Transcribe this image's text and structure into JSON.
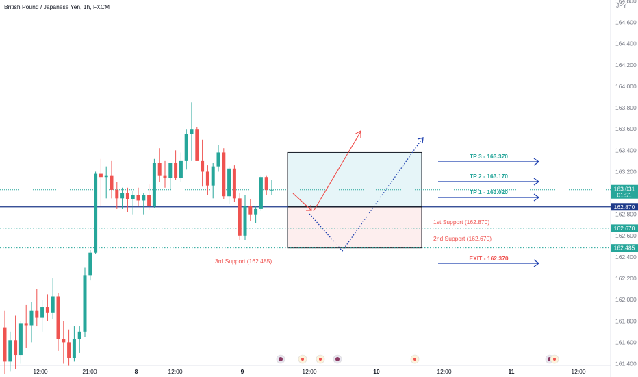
{
  "header": {
    "title": "British Pound / Japanese Yen, 1h, FXCM"
  },
  "chart_data": {
    "type": "candlestick",
    "title": "British Pound / Japanese Yen, 1h, FXCM",
    "currency": "JPY",
    "y_ticks": [
      161.4,
      161.6,
      161.8,
      162.0,
      162.2,
      162.4,
      162.6,
      162.8,
      163.0,
      163.2,
      163.4,
      163.6,
      163.8,
      164.0,
      164.2,
      164.4,
      164.6,
      164.8
    ],
    "y_tick_labels": [
      "161.400",
      "161.600",
      "161.800",
      "162.000",
      "162.200",
      "162.400",
      "162.600",
      "162.800",
      "163.000",
      "163.200",
      "163.400",
      "163.600",
      "163.800",
      "164.000",
      "164.200",
      "164.400",
      "164.600",
      "164.800"
    ],
    "ylim": [
      161.33,
      164.95
    ],
    "x_tick_labels": [
      "12:00",
      "21:00",
      "8",
      "12:00",
      "9",
      "12:00",
      "10",
      "12:00",
      "11",
      "12:00"
    ],
    "up_color": "#26a69a",
    "down_color": "#ef5350",
    "candles": [
      {
        "o": 161.74,
        "h": 161.9,
        "l": 161.3,
        "c": 161.42
      },
      {
        "o": 161.42,
        "h": 161.7,
        "l": 161.33,
        "c": 161.62
      },
      {
        "o": 161.62,
        "h": 161.85,
        "l": 161.35,
        "c": 161.48
      },
      {
        "o": 161.48,
        "h": 161.8,
        "l": 161.4,
        "c": 161.78
      },
      {
        "o": 161.78,
        "h": 161.95,
        "l": 161.55,
        "c": 161.76
      },
      {
        "o": 161.76,
        "h": 161.98,
        "l": 161.6,
        "c": 161.9
      },
      {
        "o": 161.9,
        "h": 162.1,
        "l": 161.75,
        "c": 161.83
      },
      {
        "o": 161.83,
        "h": 162.0,
        "l": 161.7,
        "c": 161.93
      },
      {
        "o": 161.93,
        "h": 162.05,
        "l": 161.8,
        "c": 161.88
      },
      {
        "o": 161.88,
        "h": 162.2,
        "l": 161.82,
        "c": 162.03
      },
      {
        "o": 162.03,
        "h": 162.06,
        "l": 161.52,
        "c": 161.63
      },
      {
        "o": 161.63,
        "h": 161.8,
        "l": 161.4,
        "c": 161.6
      },
      {
        "o": 161.6,
        "h": 161.72,
        "l": 161.38,
        "c": 161.45
      },
      {
        "o": 161.45,
        "h": 161.75,
        "l": 161.42,
        "c": 161.63
      },
      {
        "o": 161.63,
        "h": 161.75,
        "l": 161.5,
        "c": 161.7
      },
      {
        "o": 161.7,
        "h": 162.3,
        "l": 161.65,
        "c": 162.23
      },
      {
        "o": 162.23,
        "h": 162.47,
        "l": 162.18,
        "c": 162.44
      },
      {
        "o": 162.44,
        "h": 163.2,
        "l": 162.43,
        "c": 163.18
      },
      {
        "o": 163.18,
        "h": 163.32,
        "l": 162.88,
        "c": 163.15
      },
      {
        "o": 163.15,
        "h": 163.25,
        "l": 162.95,
        "c": 163.16
      },
      {
        "o": 163.16,
        "h": 163.3,
        "l": 162.95,
        "c": 163.03
      },
      {
        "o": 163.03,
        "h": 163.1,
        "l": 162.85,
        "c": 162.95
      },
      {
        "o": 162.95,
        "h": 163.05,
        "l": 162.85,
        "c": 163.0
      },
      {
        "o": 163.0,
        "h": 163.05,
        "l": 162.82,
        "c": 162.94
      },
      {
        "o": 162.94,
        "h": 163.02,
        "l": 162.8,
        "c": 162.98
      },
      {
        "o": 162.98,
        "h": 163.05,
        "l": 162.88,
        "c": 162.93
      },
      {
        "o": 162.93,
        "h": 163.0,
        "l": 162.8,
        "c": 162.98
      },
      {
        "o": 162.98,
        "h": 163.08,
        "l": 162.84,
        "c": 162.88
      },
      {
        "o": 162.88,
        "h": 163.32,
        "l": 162.86,
        "c": 163.28
      },
      {
        "o": 163.28,
        "h": 163.42,
        "l": 163.1,
        "c": 163.16
      },
      {
        "o": 163.16,
        "h": 163.3,
        "l": 163.05,
        "c": 163.14
      },
      {
        "o": 163.14,
        "h": 163.26,
        "l": 163.03,
        "c": 163.28
      },
      {
        "o": 163.28,
        "h": 163.4,
        "l": 163.12,
        "c": 163.14
      },
      {
        "o": 163.14,
        "h": 163.38,
        "l": 163.1,
        "c": 163.3
      },
      {
        "o": 163.3,
        "h": 163.6,
        "l": 163.22,
        "c": 163.55
      },
      {
        "o": 163.55,
        "h": 163.85,
        "l": 163.3,
        "c": 163.6
      },
      {
        "o": 163.6,
        "h": 163.62,
        "l": 163.3,
        "c": 163.3
      },
      {
        "o": 163.3,
        "h": 163.5,
        "l": 163.06,
        "c": 163.2
      },
      {
        "o": 163.2,
        "h": 163.26,
        "l": 162.98,
        "c": 163.07
      },
      {
        "o": 163.07,
        "h": 163.28,
        "l": 162.95,
        "c": 163.25
      },
      {
        "o": 163.25,
        "h": 163.45,
        "l": 163.2,
        "c": 163.38
      },
      {
        "o": 163.38,
        "h": 163.42,
        "l": 162.94,
        "c": 162.97
      },
      {
        "o": 162.97,
        "h": 163.25,
        "l": 162.9,
        "c": 163.23
      },
      {
        "o": 163.23,
        "h": 163.26,
        "l": 162.92,
        "c": 162.95
      },
      {
        "o": 162.95,
        "h": 163.0,
        "l": 162.56,
        "c": 162.6
      },
      {
        "o": 162.6,
        "h": 162.98,
        "l": 162.56,
        "c": 162.88
      },
      {
        "o": 162.88,
        "h": 162.94,
        "l": 162.74,
        "c": 162.8
      },
      {
        "o": 162.8,
        "h": 162.88,
        "l": 162.72,
        "c": 162.85
      },
      {
        "o": 162.85,
        "h": 163.16,
        "l": 162.83,
        "c": 163.15
      },
      {
        "o": 163.15,
        "h": 163.16,
        "l": 162.98,
        "c": 163.03
      },
      {
        "o": 163.03,
        "h": 163.12,
        "l": 162.98,
        "c": 163.031
      }
    ],
    "current_price": {
      "label": "163.031",
      "countdown": "01:51",
      "value": 163.031
    },
    "levels": [
      {
        "value": 162.87,
        "label": "162.870",
        "style": "solid"
      },
      {
        "value": 162.67,
        "label": "162.670",
        "style": "dotted"
      },
      {
        "value": 162.485,
        "label": "162.485",
        "style": "dotted"
      }
    ],
    "annotations": {
      "tp3": "TP 3 - 163.370",
      "tp2": "TP 2 - 163.170",
      "tp1": "TP 1 - 163.020",
      "support1": "1st Support (162.870)",
      "support2": "2nd Support (162.670)",
      "support3": "3rd Support (162.485)",
      "exit": "EXIT - 162.370"
    },
    "colors": {
      "target_blue": "#1e40af",
      "target_text": "#26a69a",
      "support_text": "#ef5350",
      "level_line": "#1e3a8a",
      "zone_upper": "#e6f5f8",
      "zone_lower": "#fdeeee",
      "axis_badge": "#26a69a",
      "level_badge": "#1e3a8a"
    }
  }
}
